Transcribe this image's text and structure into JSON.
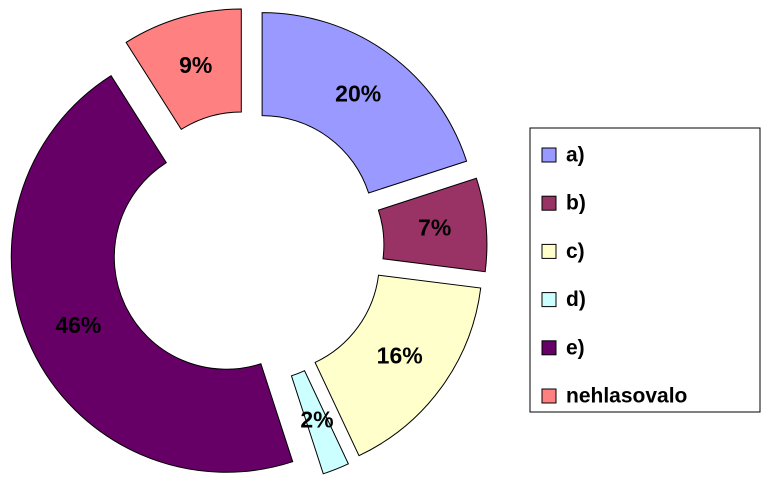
{
  "chart_data": {
    "type": "donut",
    "categories": [
      "a)",
      "b)",
      "c)",
      "d)",
      "e)",
      "nehlasovalo"
    ],
    "values": [
      20,
      7,
      16,
      2,
      46,
      9
    ],
    "value_labels": [
      "20%",
      "7%",
      "16%",
      "2%",
      "46%",
      "9%"
    ],
    "colors": [
      "#9999ff",
      "#993366",
      "#ffffcc",
      "#ccffff",
      "#660066",
      "#ff8080"
    ],
    "exploded": true,
    "legend": "right"
  }
}
